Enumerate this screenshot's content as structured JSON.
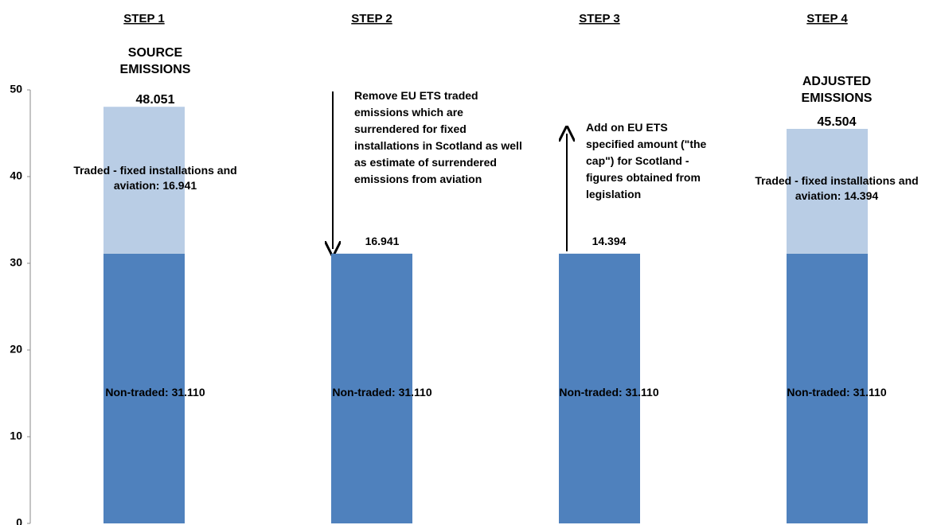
{
  "chart_data": {
    "type": "stacked-bar",
    "categories": [
      "STEP 1",
      "STEP 2",
      "STEP 3",
      "STEP 4"
    ],
    "series": [
      {
        "name": "Non-traded",
        "color": "#4f81bd",
        "values": [
          31.11,
          31.11,
          31.11,
          31.11
        ],
        "value_labels": [
          "Non-traded: 31.110",
          "Non-traded: 31.110",
          "Non-traded: 31.110",
          "Non-traded: 31.110"
        ]
      },
      {
        "name": "Traded - fixed installations and aviation",
        "color": "#b9cde5",
        "values": [
          16.941,
          null,
          null,
          14.394
        ],
        "value_labels": [
          "Traded - fixed installations and aviation: 16.941",
          null,
          null,
          "Traded - fixed installations and aviation: 14.394"
        ]
      }
    ],
    "ylim": [
      0,
      50
    ],
    "yticks": [
      0,
      10,
      20,
      30,
      40,
      50
    ],
    "annotations": [
      "SOURCE EMISSIONS",
      "48.051",
      "Remove EU ETS traded emissions which are surrendered for  fixed installations in Scotland as well as estimate of surrendered emissions from aviation",
      "16.941",
      "Add on EU ETS specified amount (\"the cap\") for Scotland - figures obtained from legislation",
      "14.394",
      "ADJUSTED EMISSIONS",
      "45.504"
    ]
  }
}
